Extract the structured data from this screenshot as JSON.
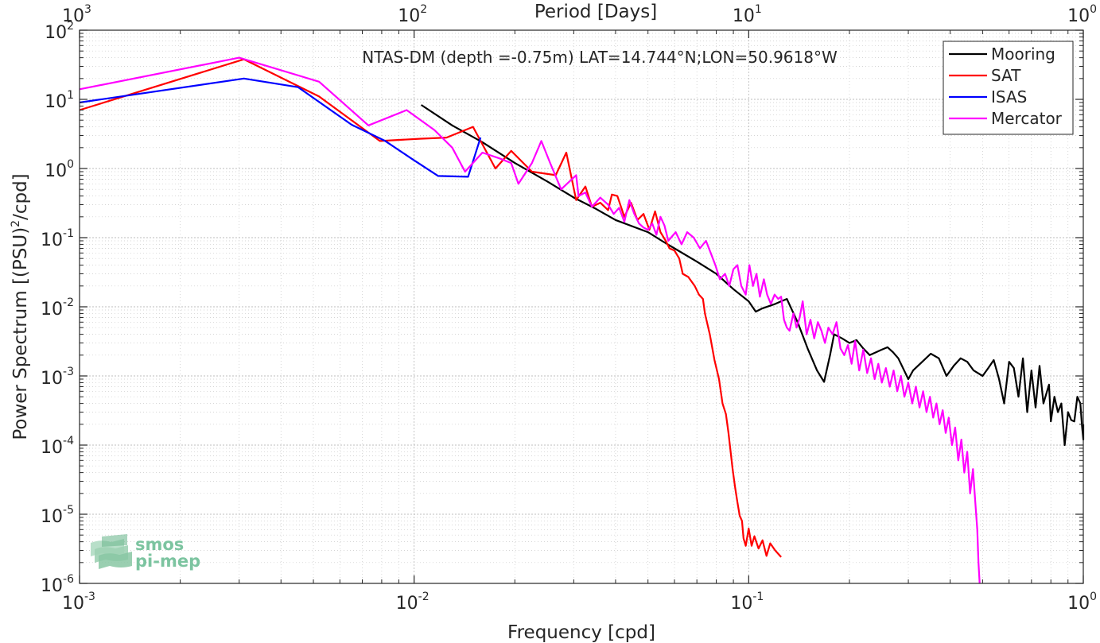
{
  "chart_data": {
    "type": "line",
    "title": "NTAS-DM (depth =-0.75m) LAT=14.744°N;LON=50.9618°W",
    "xlabel": "Frequency [cpd]",
    "ylabel_main": "Power Spectrum [(PSU)",
    "ylabel_sup": "2",
    "ylabel_tail": "/cpd]",
    "top_xlabel": "Period [Days]",
    "xscale": "log",
    "yscale": "log",
    "xlim": [
      0.001,
      1
    ],
    "ylim": [
      1e-06,
      100
    ],
    "grid": true,
    "minor_grid": true,
    "legend_position": "top-right",
    "x_ticks": [
      {
        "value": 0.001,
        "base": "10",
        "exp": "-3"
      },
      {
        "value": 0.01,
        "base": "10",
        "exp": "-2"
      },
      {
        "value": 0.1,
        "base": "10",
        "exp": "-1"
      },
      {
        "value": 1,
        "base": "10",
        "exp": "0"
      }
    ],
    "top_x_ticks": [
      {
        "value": 0.001,
        "base": "10",
        "exp": "3"
      },
      {
        "value": 0.01,
        "base": "10",
        "exp": "2"
      },
      {
        "value": 0.1,
        "base": "10",
        "exp": "1"
      },
      {
        "value": 1,
        "base": "10",
        "exp": "0"
      }
    ],
    "y_ticks": [
      {
        "value": 100,
        "base": "10",
        "exp": "2"
      },
      {
        "value": 10,
        "base": "10",
        "exp": "1"
      },
      {
        "value": 1,
        "base": "10",
        "exp": "0"
      },
      {
        "value": 0.1,
        "base": "10",
        "exp": "-1"
      },
      {
        "value": 0.01,
        "base": "10",
        "exp": "-2"
      },
      {
        "value": 0.001,
        "base": "10",
        "exp": "-3"
      },
      {
        "value": 0.0001,
        "base": "10",
        "exp": "-4"
      },
      {
        "value": 1e-05,
        "base": "10",
        "exp": "-5"
      },
      {
        "value": 1e-06,
        "base": "10",
        "exp": "-6"
      }
    ],
    "series": [
      {
        "name": "Mooring",
        "color": "#000000",
        "points": [
          [
            0.0105,
            8.3
          ],
          [
            0.013,
            4.2
          ],
          [
            0.016,
            2.4
          ],
          [
            0.02,
            1.2
          ],
          [
            0.025,
            0.65
          ],
          [
            0.03,
            0.38
          ],
          [
            0.035,
            0.26
          ],
          [
            0.04,
            0.18
          ],
          [
            0.05,
            0.12
          ],
          [
            0.055,
            0.09
          ],
          [
            0.06,
            0.07
          ],
          [
            0.07,
            0.045
          ],
          [
            0.08,
            0.03
          ],
          [
            0.09,
            0.018
          ],
          [
            0.1,
            0.012
          ],
          [
            0.105,
            0.0085
          ],
          [
            0.11,
            0.0095
          ],
          [
            0.12,
            0.011
          ],
          [
            0.125,
            0.012
          ],
          [
            0.13,
            0.013
          ],
          [
            0.14,
            0.006
          ],
          [
            0.15,
            0.0025
          ],
          [
            0.16,
            0.0012
          ],
          [
            0.168,
            0.00082
          ],
          [
            0.175,
            0.002
          ],
          [
            0.18,
            0.004
          ],
          [
            0.19,
            0.0035
          ],
          [
            0.2,
            0.003
          ],
          [
            0.21,
            0.0033
          ],
          [
            0.22,
            0.0025
          ],
          [
            0.23,
            0.002
          ],
          [
            0.24,
            0.0022
          ],
          [
            0.25,
            0.0024
          ],
          [
            0.26,
            0.0026
          ],
          [
            0.27,
            0.0022
          ],
          [
            0.28,
            0.0018
          ],
          [
            0.3,
            0.0009
          ],
          [
            0.31,
            0.0012
          ],
          [
            0.33,
            0.0016
          ],
          [
            0.35,
            0.0021
          ],
          [
            0.37,
            0.0018
          ],
          [
            0.39,
            0.001
          ],
          [
            0.41,
            0.0014
          ],
          [
            0.43,
            0.0018
          ],
          [
            0.45,
            0.0016
          ],
          [
            0.47,
            0.0012
          ],
          [
            0.5,
            0.001
          ],
          [
            0.52,
            0.0013
          ],
          [
            0.54,
            0.0017
          ],
          [
            0.56,
            0.0009
          ],
          [
            0.58,
            0.0004
          ],
          [
            0.6,
            0.0016
          ],
          [
            0.62,
            0.0013
          ],
          [
            0.64,
            0.0005
          ],
          [
            0.66,
            0.0018
          ],
          [
            0.68,
            0.0003
          ],
          [
            0.7,
            0.0012
          ],
          [
            0.72,
            0.00035
          ],
          [
            0.74,
            0.0014
          ],
          [
            0.76,
            0.0004
          ],
          [
            0.79,
            0.00075
          ],
          [
            0.8,
            0.00022
          ],
          [
            0.82,
            0.0005
          ],
          [
            0.84,
            0.0003
          ],
          [
            0.86,
            0.0004
          ],
          [
            0.88,
            0.0001
          ],
          [
            0.9,
            0.0003
          ],
          [
            0.92,
            0.00023
          ],
          [
            0.94,
            0.00022
          ],
          [
            0.96,
            0.0005
          ],
          [
            0.98,
            0.0004
          ],
          [
            0.99,
            0.0002
          ],
          [
            1.0,
            0.00012
          ],
          [
            1.0,
            0.0002
          ]
        ]
      },
      {
        "name": "SAT",
        "color": "#ff0000",
        "points": [
          [
            0.001,
            7
          ],
          [
            0.0031,
            38
          ],
          [
            0.0052,
            11
          ],
          [
            0.0079,
            2.5
          ],
          [
            0.0105,
            2.7
          ],
          [
            0.0125,
            2.8
          ],
          [
            0.015,
            4.0
          ],
          [
            0.0175,
            1.0
          ],
          [
            0.0195,
            1.8
          ],
          [
            0.0225,
            0.9
          ],
          [
            0.0265,
            0.8
          ],
          [
            0.0285,
            1.7
          ],
          [
            0.0305,
            0.35
          ],
          [
            0.0325,
            0.55
          ],
          [
            0.034,
            0.28
          ],
          [
            0.036,
            0.32
          ],
          [
            0.038,
            0.25
          ],
          [
            0.039,
            0.42
          ],
          [
            0.0405,
            0.4
          ],
          [
            0.0425,
            0.2
          ],
          [
            0.0445,
            0.32
          ],
          [
            0.0465,
            0.18
          ],
          [
            0.0485,
            0.22
          ],
          [
            0.0505,
            0.13
          ],
          [
            0.0525,
            0.24
          ],
          [
            0.0545,
            0.12
          ],
          [
            0.0565,
            0.09
          ],
          [
            0.058,
            0.07
          ],
          [
            0.06,
            0.065
          ],
          [
            0.062,
            0.05
          ],
          [
            0.0635,
            0.03
          ],
          [
            0.066,
            0.027
          ],
          [
            0.069,
            0.02
          ],
          [
            0.071,
            0.015
          ],
          [
            0.073,
            0.013
          ],
          [
            0.074,
            0.008
          ],
          [
            0.0765,
            0.004
          ],
          [
            0.079,
            0.0017
          ],
          [
            0.0815,
            0.0009
          ],
          [
            0.0835,
            0.0004
          ],
          [
            0.0855,
            0.00028
          ],
          [
            0.087,
            0.00015
          ],
          [
            0.0895,
            4.5e-05
          ],
          [
            0.091,
            2.5e-05
          ],
          [
            0.0925,
            1.5e-05
          ],
          [
            0.094,
            9.5e-06
          ],
          [
            0.0955,
            8e-06
          ],
          [
            0.0965,
            4.5e-06
          ],
          [
            0.098,
            3.5e-06
          ],
          [
            0.1,
            6.2e-06
          ],
          [
            0.102,
            3.5e-06
          ],
          [
            0.104,
            4.8e-06
          ],
          [
            0.107,
            3.2e-06
          ],
          [
            0.11,
            4.2e-06
          ],
          [
            0.113,
            2.5e-06
          ],
          [
            0.116,
            3.8e-06
          ],
          [
            0.12,
            3e-06
          ],
          [
            0.125,
            2.4e-06
          ]
        ]
      },
      {
        "name": "ISAS",
        "color": "#0000ff",
        "points": [
          [
            0.001,
            9
          ],
          [
            0.0031,
            20
          ],
          [
            0.0045,
            15
          ],
          [
            0.0065,
            4.3
          ],
          [
            0.0082,
            2.5
          ],
          [
            0.0098,
            1.4
          ],
          [
            0.0118,
            0.78
          ],
          [
            0.0145,
            0.76
          ],
          [
            0.0158,
            2.8
          ]
        ]
      },
      {
        "name": "Mercator",
        "color": "#ff00ff",
        "points": [
          [
            0.001,
            14
          ],
          [
            0.003,
            40
          ],
          [
            0.0052,
            18
          ],
          [
            0.0073,
            4.2
          ],
          [
            0.0095,
            7
          ],
          [
            0.0115,
            3.6
          ],
          [
            0.013,
            2.0
          ],
          [
            0.0142,
            0.9
          ],
          [
            0.016,
            1.7
          ],
          [
            0.018,
            1.4
          ],
          [
            0.0195,
            1.2
          ],
          [
            0.0205,
            0.6
          ],
          [
            0.0225,
            1.2
          ],
          [
            0.024,
            2.5
          ],
          [
            0.0255,
            1.2
          ],
          [
            0.0275,
            0.5
          ],
          [
            0.0305,
            0.8
          ],
          [
            0.031,
            0.4
          ],
          [
            0.0325,
            0.45
          ],
          [
            0.034,
            0.28
          ],
          [
            0.036,
            0.38
          ],
          [
            0.038,
            0.3
          ],
          [
            0.0395,
            0.22
          ],
          [
            0.041,
            0.27
          ],
          [
            0.0425,
            0.17
          ],
          [
            0.044,
            0.35
          ],
          [
            0.0455,
            0.22
          ],
          [
            0.047,
            0.16
          ],
          [
            0.0485,
            0.14
          ],
          [
            0.05,
            0.13
          ],
          [
            0.0515,
            0.16
          ],
          [
            0.053,
            0.11
          ],
          [
            0.0545,
            0.2
          ],
          [
            0.056,
            0.15
          ],
          [
            0.0575,
            0.09
          ],
          [
            0.0605,
            0.12
          ],
          [
            0.063,
            0.08
          ],
          [
            0.0655,
            0.12
          ],
          [
            0.0685,
            0.1
          ],
          [
            0.0715,
            0.07
          ],
          [
            0.0745,
            0.09
          ],
          [
            0.077,
            0.06
          ],
          [
            0.0795,
            0.04
          ],
          [
            0.082,
            0.025
          ],
          [
            0.085,
            0.03
          ],
          [
            0.0875,
            0.02
          ],
          [
            0.09,
            0.035
          ],
          [
            0.0925,
            0.04
          ],
          [
            0.095,
            0.02
          ],
          [
            0.098,
            0.015
          ],
          [
            0.1005,
            0.04
          ],
          [
            0.103,
            0.02
          ],
          [
            0.1055,
            0.03
          ],
          [
            0.108,
            0.014
          ],
          [
            0.111,
            0.025
          ],
          [
            0.1135,
            0.015
          ],
          [
            0.1165,
            0.011
          ],
          [
            0.1195,
            0.015
          ],
          [
            0.1225,
            0.013
          ],
          [
            0.125,
            0.014
          ],
          [
            0.1275,
            0.0065
          ],
          [
            0.13,
            0.005
          ],
          [
            0.1325,
            0.0045
          ],
          [
            0.136,
            0.008
          ],
          [
            0.139,
            0.005
          ],
          [
            0.142,
            0.007
          ],
          [
            0.145,
            0.012
          ],
          [
            0.149,
            0.004
          ],
          [
            0.153,
            0.0065
          ],
          [
            0.157,
            0.0035
          ],
          [
            0.161,
            0.006
          ],
          [
            0.165,
            0.0045
          ],
          [
            0.169,
            0.003
          ],
          [
            0.173,
            0.005
          ],
          [
            0.178,
            0.004
          ],
          [
            0.183,
            0.006
          ],
          [
            0.188,
            0.0025
          ],
          [
            0.193,
            0.002
          ],
          [
            0.198,
            0.0028
          ],
          [
            0.203,
            0.0015
          ],
          [
            0.208,
            0.0032
          ],
          [
            0.214,
            0.0012
          ],
          [
            0.22,
            0.0024
          ],
          [
            0.226,
            0.0011
          ],
          [
            0.232,
            0.0018
          ],
          [
            0.238,
            0.0009
          ],
          [
            0.244,
            0.0015
          ],
          [
            0.25,
            0.0008
          ],
          [
            0.257,
            0.0013
          ],
          [
            0.264,
            0.0007
          ],
          [
            0.271,
            0.0012
          ],
          [
            0.278,
            0.0006
          ],
          [
            0.285,
            0.001
          ],
          [
            0.292,
            0.0005
          ],
          [
            0.3,
            0.0008
          ],
          [
            0.308,
            0.0004
          ],
          [
            0.316,
            0.0007
          ],
          [
            0.324,
            0.00035
          ],
          [
            0.332,
            0.0006
          ],
          [
            0.34,
            0.0003
          ],
          [
            0.348,
            0.0005
          ],
          [
            0.356,
            0.00025
          ],
          [
            0.364,
            0.0004
          ],
          [
            0.372,
            0.0002
          ],
          [
            0.38,
            0.00032
          ],
          [
            0.388,
            0.00015
          ],
          [
            0.396,
            0.00025
          ],
          [
            0.405,
            0.0001
          ],
          [
            0.414,
            0.00018
          ],
          [
            0.423,
            6e-05
          ],
          [
            0.432,
            0.00012
          ],
          [
            0.441,
            4e-05
          ],
          [
            0.45,
            8e-05
          ],
          [
            0.459,
            2e-05
          ],
          [
            0.468,
            4.5e-05
          ],
          [
            0.477,
            1.2e-05
          ],
          [
            0.482,
            6e-06
          ],
          [
            0.486,
            2e-06
          ],
          [
            0.49,
            1e-06
          ]
        ]
      }
    ]
  },
  "logo": {
    "line1": "smos",
    "line2": "pi-mep",
    "color": "#7cc4a0"
  }
}
